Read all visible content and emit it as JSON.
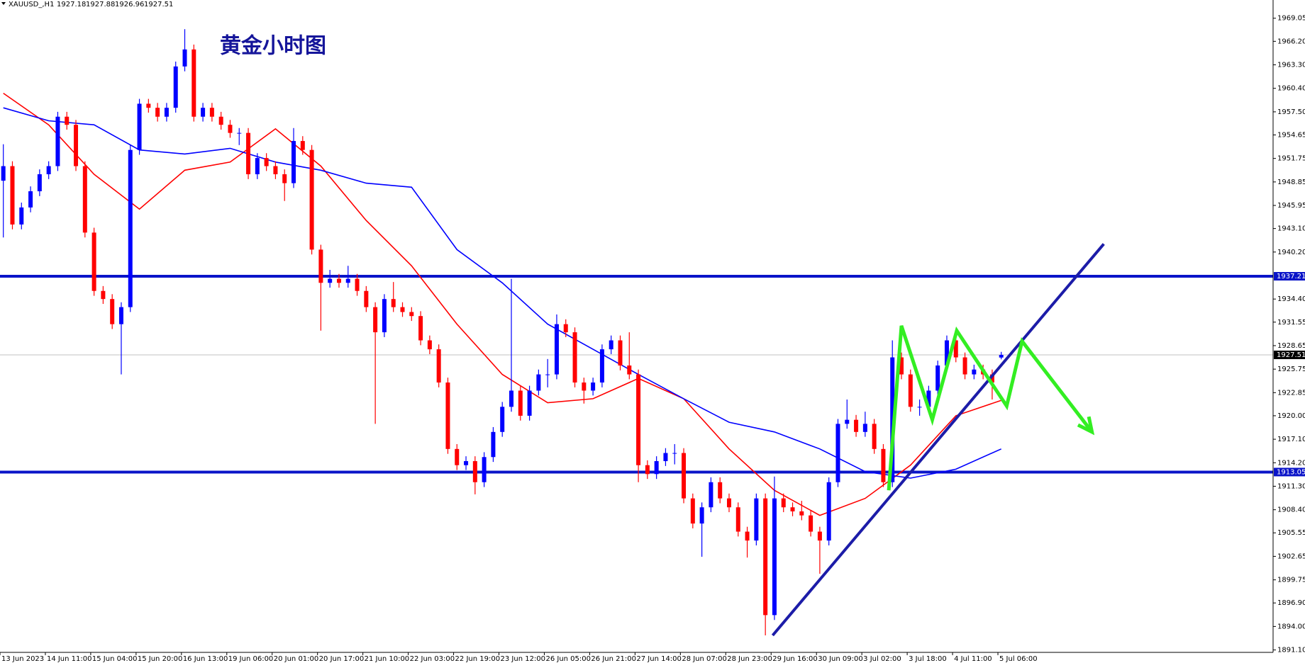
{
  "chart_data": {
    "type": "candlestick",
    "header": {
      "symbol": "XAUUSD_,H1"
    },
    "title": "黄金小时图",
    "up_color": "#0000ff",
    "down_color": "#ff0000",
    "ylim": [
      1890.8,
      1971.3
    ],
    "yticks": [
      1969.05,
      {
        "value": 1966.2,
        "label": "1966.20"
      },
      {
        "value": 1963.3,
        "label": "1963.30"
      },
      {
        "value": 1960.4,
        "label": "1960.40"
      },
      {
        "value": 1957.5,
        "label": "1957.50"
      },
      1954.65,
      1951.75,
      1948.85,
      1945.95,
      {
        "value": 1943.1,
        "label": "1943.10"
      },
      {
        "value": 1940.2,
        "label": "1940.20"
      },
      {
        "value": 1934.4,
        "label": "1934.40"
      },
      1931.55,
      1928.65,
      1925.75,
      1922.85,
      {
        "value": 1920,
        "label": "1920.00"
      },
      {
        "value": 1917.1,
        "label": "1917.10"
      },
      {
        "value": 1914.2,
        "label": "1914.20"
      },
      {
        "value": 1911.3,
        "label": "1911.30"
      },
      {
        "value": 1908.4,
        "label": "1908.40"
      },
      1905.55,
      1902.65,
      1899.75,
      {
        "value": 1896.9,
        "label": "1896.90"
      },
      {
        "value": 1894,
        "label": "1894.00"
      },
      {
        "value": 1891.1,
        "label": "1891.10"
      }
    ],
    "xlabels": [
      "13 Jun 2023",
      "14 Jun 11:00",
      "15 Jun 04:00",
      "15 Jun 20:00",
      "16 Jun 13:00",
      "19 Jun 06:00",
      "20 Jun 01:00",
      "20 Jun 17:00",
      "21 Jun 10:00",
      "22 Jun 03:00",
      "22 Jun 19:00",
      "23 Jun 12:00",
      "26 Jun 05:00",
      "26 Jun 21:00",
      "27 Jun 14:00",
      "28 Jun 07:00",
      "28 Jun 23:00",
      "29 Jun 16:00",
      "30 Jun 09:00",
      "3 Jul 02:00",
      "3 Jul 18:00",
      "4 Jul 11:00",
      "5 Jul 06:00"
    ],
    "candles": [
      [
        1949.0,
        1953.5,
        1942.0,
        1950.8
      ],
      [
        1950.8,
        1951.4,
        1943.0,
        1943.6
      ],
      [
        1943.6,
        1946.3,
        1943.0,
        1945.7
      ],
      [
        1945.7,
        1948.3,
        1945.1,
        1947.7
      ],
      [
        1947.7,
        1950.4,
        1947.1,
        1949.8
      ],
      [
        1949.8,
        1951.4,
        1949.2,
        1950.8
      ],
      [
        1950.8,
        1957.5,
        1950.2,
        1956.9
      ],
      [
        1956.9,
        1957.5,
        1955.3,
        1955.9
      ],
      [
        1955.9,
        1956.5,
        1950.2,
        1950.8
      ],
      [
        1950.8,
        1951.4,
        1942.0,
        1942.6
      ],
      [
        1942.6,
        1943.2,
        1934.8,
        1935.4
      ],
      [
        1935.4,
        1936.0,
        1933.8,
        1934.4
      ],
      [
        1934.4,
        1935.0,
        1930.7,
        1931.3
      ],
      [
        1931.3,
        1934.0,
        1925.1,
        1933.4
      ],
      [
        1933.4,
        1953.4,
        1932.8,
        1952.8
      ],
      [
        1952.8,
        1959.1,
        1952.2,
        1958.5
      ],
      [
        1958.5,
        1959.1,
        1957.4,
        1958.0
      ],
      [
        1958.0,
        1958.6,
        1956.3,
        1956.9
      ],
      [
        1956.9,
        1958.6,
        1956.3,
        1958.0
      ],
      [
        1958.0,
        1963.7,
        1957.4,
        1963.1
      ],
      [
        1963.1,
        1967.7,
        1962.5,
        1965.2
      ],
      [
        1965.2,
        1965.8,
        1956.3,
        1956.9
      ],
      [
        1956.9,
        1958.6,
        1956.3,
        1958.0
      ],
      [
        1958.0,
        1958.6,
        1956.3,
        1956.9
      ],
      [
        1956.9,
        1957.5,
        1955.3,
        1955.9
      ],
      [
        1955.9,
        1956.5,
        1954.3,
        1954.9
      ],
      [
        1954.9,
        1955.5,
        1953.4,
        1954.9
      ],
      [
        1954.9,
        1955.5,
        1949.2,
        1949.8
      ],
      [
        1949.8,
        1952.4,
        1949.2,
        1951.8
      ],
      [
        1951.8,
        1952.4,
        1950.2,
        1950.8
      ],
      [
        1950.8,
        1951.4,
        1949.2,
        1949.8
      ],
      [
        1949.8,
        1950.4,
        1946.5,
        1948.7
      ],
      [
        1948.7,
        1955.5,
        1948.1,
        1953.9
      ],
      [
        1953.9,
        1954.5,
        1952.2,
        1952.8
      ],
      [
        1952.8,
        1953.4,
        1939.9,
        1940.5
      ],
      [
        1940.5,
        1941.1,
        1930.5,
        1936.4
      ],
      [
        1936.4,
        1938.0,
        1935.8,
        1936.9
      ],
      [
        1936.9,
        1937.5,
        1935.8,
        1936.4
      ],
      [
        1936.4,
        1938.5,
        1935.8,
        1936.9
      ],
      [
        1936.9,
        1937.5,
        1934.8,
        1935.4
      ],
      [
        1935.4,
        1936.0,
        1932.8,
        1933.4
      ],
      [
        1933.4,
        1934.0,
        1919.0,
        1930.3
      ],
      [
        1930.3,
        1935.0,
        1929.7,
        1934.4
      ],
      [
        1934.4,
        1936.5,
        1932.8,
        1933.4
      ],
      [
        1933.4,
        1934.0,
        1932.2,
        1932.8
      ],
      [
        1932.8,
        1933.4,
        1931.7,
        1932.3
      ],
      [
        1932.3,
        1932.9,
        1928.7,
        1929.3
      ],
      [
        1929.3,
        1929.9,
        1927.6,
        1928.2
      ],
      [
        1928.2,
        1928.8,
        1923.5,
        1924.1
      ],
      [
        1924.1,
        1924.7,
        1915.3,
        1915.9
      ],
      [
        1915.9,
        1916.5,
        1913.3,
        1913.9
      ],
      [
        1913.9,
        1915.0,
        1913.3,
        1914.4
      ],
      [
        1914.4,
        1915.0,
        1910.3,
        1911.8
      ],
      [
        1911.8,
        1915.5,
        1911.2,
        1914.9
      ],
      [
        1914.9,
        1918.6,
        1914.3,
        1918.0
      ],
      [
        1918.0,
        1921.7,
        1917.4,
        1921.1
      ],
      [
        1921.1,
        1936.9,
        1920.5,
        1923.1
      ],
      [
        1923.1,
        1923.7,
        1919.4,
        1920.0
      ],
      [
        1920.0,
        1923.7,
        1919.4,
        1923.1
      ],
      [
        1923.1,
        1925.7,
        1922.5,
        1925.1
      ],
      [
        1925.1,
        1927.0,
        1923.5,
        1925.1
      ],
      [
        1925.1,
        1932.5,
        1924.5,
        1931.3
      ],
      [
        1931.3,
        1931.9,
        1929.7,
        1930.3
      ],
      [
        1930.3,
        1930.9,
        1923.5,
        1924.1
      ],
      [
        1924.1,
        1924.7,
        1921.5,
        1923.1
      ],
      [
        1923.1,
        1924.7,
        1922.5,
        1924.1
      ],
      [
        1924.1,
        1928.8,
        1923.5,
        1928.2
      ],
      [
        1928.2,
        1929.9,
        1927.6,
        1929.3
      ],
      [
        1929.3,
        1929.9,
        1925.6,
        1926.2
      ],
      [
        1926.2,
        1930.3,
        1924.5,
        1925.1
      ],
      [
        1925.1,
        1925.7,
        1911.8,
        1913.9
      ],
      [
        1913.9,
        1914.5,
        1912.2,
        1912.8
      ],
      [
        1912.8,
        1915.0,
        1912.2,
        1914.4
      ],
      [
        1914.4,
        1916.0,
        1913.8,
        1915.4
      ],
      [
        1915.4,
        1916.5,
        1914.0,
        1915.4
      ],
      [
        1915.4,
        1916.0,
        1909.2,
        1909.8
      ],
      [
        1909.8,
        1910.4,
        1906.1,
        1906.7
      ],
      [
        1906.7,
        1909.3,
        1902.6,
        1908.7
      ],
      [
        1908.7,
        1912.4,
        1908.1,
        1911.8
      ],
      [
        1911.8,
        1912.4,
        1909.2,
        1909.8
      ],
      [
        1909.8,
        1910.4,
        1908.1,
        1908.7
      ],
      [
        1908.7,
        1909.3,
        1905.1,
        1905.7
      ],
      [
        1905.7,
        1906.3,
        1902.5,
        1904.6
      ],
      [
        1904.6,
        1910.4,
        1904.0,
        1909.8
      ],
      [
        1909.8,
        1910.4,
        1892.9,
        1895.4
      ],
      [
        1895.4,
        1912.5,
        1894.8,
        1909.8
      ],
      [
        1909.8,
        1910.4,
        1908.1,
        1908.7
      ],
      [
        1908.7,
        1909.3,
        1907.6,
        1908.2
      ],
      [
        1908.2,
        1909.5,
        1907.1,
        1907.7
      ],
      [
        1907.7,
        1908.3,
        1905.1,
        1905.7
      ],
      [
        1905.7,
        1906.3,
        1900.5,
        1904.6
      ],
      [
        1904.6,
        1912.4,
        1904.0,
        1911.8
      ],
      [
        1911.8,
        1919.6,
        1911.2,
        1919.0
      ],
      [
        1919.0,
        1922.0,
        1918.4,
        1919.5
      ],
      [
        1919.5,
        1920.1,
        1917.4,
        1918.0
      ],
      [
        1918.0,
        1920.5,
        1917.4,
        1919.0
      ],
      [
        1919.0,
        1919.6,
        1915.3,
        1915.9
      ],
      [
        1915.9,
        1916.5,
        1911.2,
        1911.8
      ],
      [
        1911.8,
        1929.3,
        1911.2,
        1927.2
      ],
      [
        1927.2,
        1927.8,
        1924.5,
        1925.1
      ],
      [
        1925.1,
        1925.7,
        1920.5,
        1921.1
      ],
      [
        1921.1,
        1922.0,
        1920.0,
        1921.1
      ],
      [
        1921.1,
        1923.7,
        1920.5,
        1923.1
      ],
      [
        1923.1,
        1926.8,
        1922.5,
        1926.2
      ],
      [
        1926.2,
        1929.9,
        1925.6,
        1929.3
      ],
      [
        1929.3,
        1929.9,
        1926.6,
        1927.2
      ],
      [
        1927.2,
        1927.8,
        1924.5,
        1925.1
      ],
      [
        1925.1,
        1926.3,
        1924.5,
        1925.7
      ],
      [
        1925.7,
        1926.3,
        1924.5,
        1925.1
      ],
      [
        1925.1,
        1925.7,
        1922.0,
        1924.1
      ],
      [
        1927.18,
        1927.88,
        1926.96,
        1927.51
      ]
    ],
    "moving_averages": [
      {
        "color": "#ff0000",
        "x": [
          0,
          5,
          10,
          15,
          20,
          25,
          30,
          35,
          40,
          45,
          50,
          55,
          60,
          65,
          70,
          75,
          80,
          85,
          90,
          95,
          100,
          105,
          110
        ],
        "values": [
          1959.8,
          1955.9,
          1949.8,
          1945.5,
          1950.3,
          1951.3,
          1955.4,
          1950.8,
          1944.1,
          1938.5,
          1931.3,
          1925.1,
          1921.6,
          1922.1,
          1924.6,
          1922.1,
          1915.9,
          1910.8,
          1907.7,
          1909.8,
          1913.9,
          1920.0,
          1921.9
        ]
      },
      {
        "color": "#0000ff",
        "x": [
          0,
          5,
          10,
          15,
          20,
          25,
          30,
          35,
          40,
          45,
          50,
          55,
          60,
          65,
          70,
          75,
          80,
          85,
          90,
          95,
          100,
          105,
          110
        ],
        "values": [
          1958.0,
          1956.4,
          1955.9,
          1952.8,
          1952.3,
          1953.0,
          1951.3,
          1950.3,
          1948.7,
          1948.2,
          1940.5,
          1936.4,
          1931.3,
          1928.2,
          1925.1,
          1922.1,
          1919.2,
          1918.0,
          1915.9,
          1913.1,
          1912.3,
          1913.4,
          1915.9
        ]
      }
    ],
    "levels": [
      {
        "value": 1937.21,
        "color": "#0a14c8"
      },
      {
        "value": 1913.05,
        "color": "#0a14c8"
      }
    ],
    "current_price_color": "#000000",
    "trendline": {
      "color": "#1c1ca8",
      "x": [
        84.8,
        121.3
      ],
      "y": [
        1892.9,
        1941.2
      ]
    },
    "projection": {
      "color": "#33ee22",
      "x": [
        97.6,
        99.0,
        102.4,
        105.1,
        110.6,
        112.3,
        120.0
      ],
      "y": [
        1910.8,
        1931.1,
        1919.5,
        1930.5,
        1921.2,
        1929.2,
        1918.0
      ]
    }
  }
}
